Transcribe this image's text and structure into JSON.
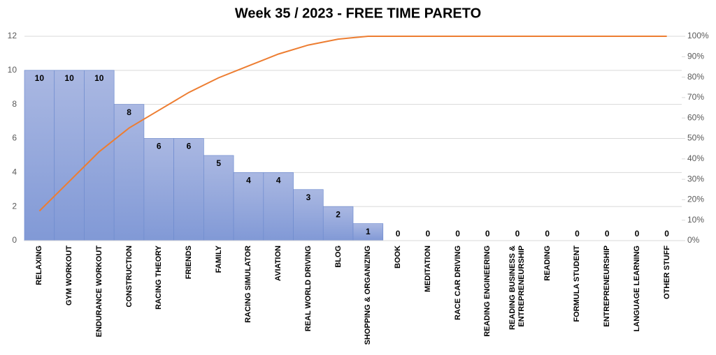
{
  "chart_data": {
    "type": "bar",
    "title": "Week 35 / 2023 - FREE TIME PARETO",
    "categories": [
      "RELAXING",
      "GYM WORKOUT",
      "ENDURANCE WORKOUT",
      "CONSTRUCTION",
      "RACING THEORY",
      "FRIENDS",
      "FAMILY",
      "RACING SIMULATOR",
      "AVIATION",
      "REAL WORLD DRIVING",
      "BLOG",
      "SHOPPING & ORGANIZING",
      "BOOK",
      "MEDITATION",
      "RACE CAR DRIVING",
      "READING ENGINEERING",
      "READING BUSINESS & ENTREPRENEURSHIP",
      "READING",
      "FORMULA STUDENT",
      "ENTREPRENEURSHIP",
      "LANGUAGE LEARNING",
      "OTHER STUFF"
    ],
    "series": [
      {
        "type": "bar",
        "color": "#8ea4dc",
        "values": [
          10,
          10,
          10,
          8,
          6,
          6,
          5,
          4,
          4,
          3,
          2,
          1,
          0,
          0,
          0,
          0,
          0,
          0,
          0,
          0,
          0,
          0
        ]
      },
      {
        "type": "line",
        "axis": "y2",
        "color": "#ed7d31",
        "values": [
          14.5,
          29.0,
          43.5,
          55.1,
          63.8,
          72.5,
          79.7,
          85.5,
          91.3,
          95.7,
          98.6,
          100,
          100,
          100,
          100,
          100,
          100,
          100,
          100,
          100,
          100,
          100
        ]
      }
    ],
    "ylim": [
      0,
      12
    ],
    "yticks": [
      0,
      2,
      4,
      6,
      8,
      10,
      12
    ],
    "y2lim": [
      0,
      100
    ],
    "y2ticks": [
      {
        "value": 0,
        "label": "0%"
      },
      {
        "value": 10,
        "label": "10%"
      },
      {
        "value": 20,
        "label": "20%"
      },
      {
        "value": 30,
        "label": "30%"
      },
      {
        "value": 40,
        "label": "40%"
      },
      {
        "value": 50,
        "label": "50%"
      },
      {
        "value": 60,
        "label": "60%"
      },
      {
        "value": 70,
        "label": "70%"
      },
      {
        "value": 80,
        "label": "80%"
      },
      {
        "value": 90,
        "label": "90%"
      },
      {
        "value": 100,
        "label": "100%"
      }
    ],
    "grid": true
  }
}
